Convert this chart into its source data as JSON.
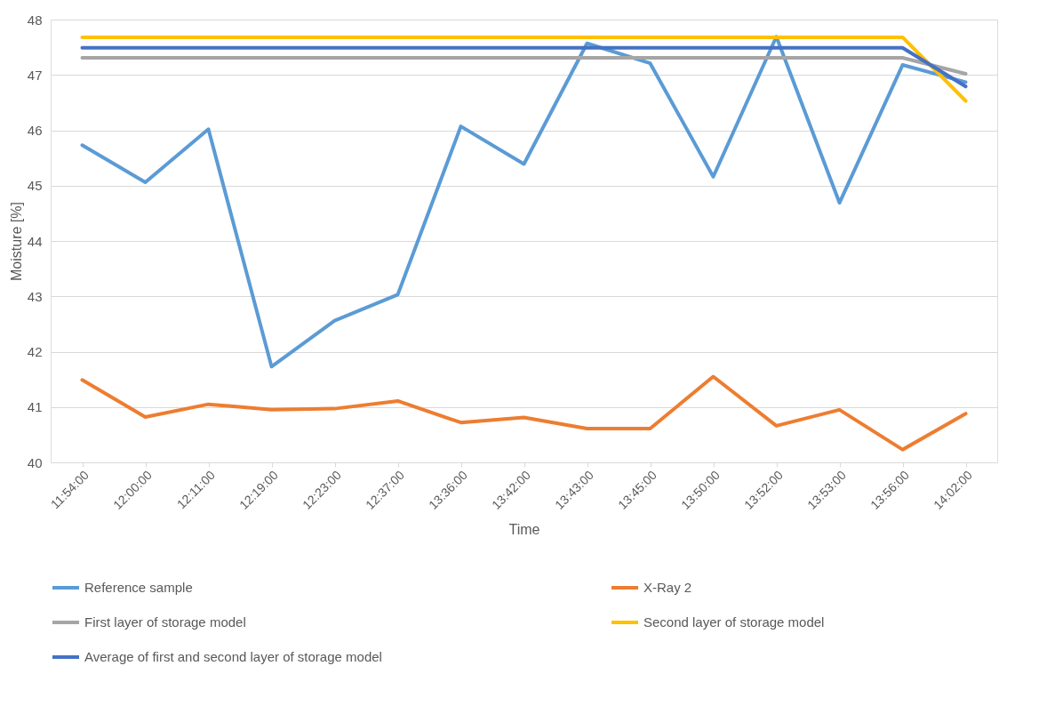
{
  "chart_data": {
    "type": "line",
    "xlabel": "Time",
    "ylabel": "Moisture [%]",
    "categories": [
      "11:54:00",
      "12:00:00",
      "12:11:00",
      "12:19:00",
      "12:23:00",
      "12:37:00",
      "13:36:00",
      "13:42:00",
      "13:43:00",
      "13:45:00",
      "13:50:00",
      "13:52:00",
      "13:53:00",
      "13:56:00",
      "14:02:00"
    ],
    "series": [
      {
        "name": "Reference sample",
        "color": "#5b9bd5",
        "values": [
          45.73,
          45.06,
          46.02,
          41.73,
          42.56,
          43.03,
          46.07,
          45.39,
          47.57,
          47.21,
          45.16,
          47.69,
          44.69,
          47.18,
          46.87
        ]
      },
      {
        "name": "X-Ray 2",
        "color": "#ed7d31",
        "values": [
          41.49,
          40.82,
          41.05,
          40.95,
          40.97,
          41.11,
          40.72,
          40.81,
          40.61,
          40.61,
          41.55,
          40.66,
          40.95,
          40.23,
          40.88
        ]
      },
      {
        "name": "First layer of storage model",
        "color": "#a5a5a5",
        "values": [
          47.31,
          47.31,
          47.31,
          47.31,
          47.31,
          47.31,
          47.31,
          47.31,
          47.31,
          47.31,
          47.31,
          47.31,
          47.31,
          47.31,
          47.02
        ]
      },
      {
        "name": "Second layer of storage model",
        "color": "#ffc000",
        "values": [
          47.68,
          47.68,
          47.68,
          47.68,
          47.68,
          47.68,
          47.68,
          47.68,
          47.68,
          47.68,
          47.68,
          47.68,
          47.68,
          47.68,
          46.53
        ]
      },
      {
        "name": "Average of first and second layer of storage model",
        "color": "#4472c4",
        "values": [
          47.49,
          47.49,
          47.49,
          47.49,
          47.49,
          47.49,
          47.49,
          47.49,
          47.49,
          47.49,
          47.49,
          47.49,
          47.49,
          47.49,
          46.79
        ]
      }
    ],
    "ylim": [
      40,
      48
    ],
    "yticks": [
      40,
      41,
      42,
      43,
      44,
      45,
      46,
      47,
      48
    ],
    "grid": "y",
    "legend": "bottom"
  }
}
